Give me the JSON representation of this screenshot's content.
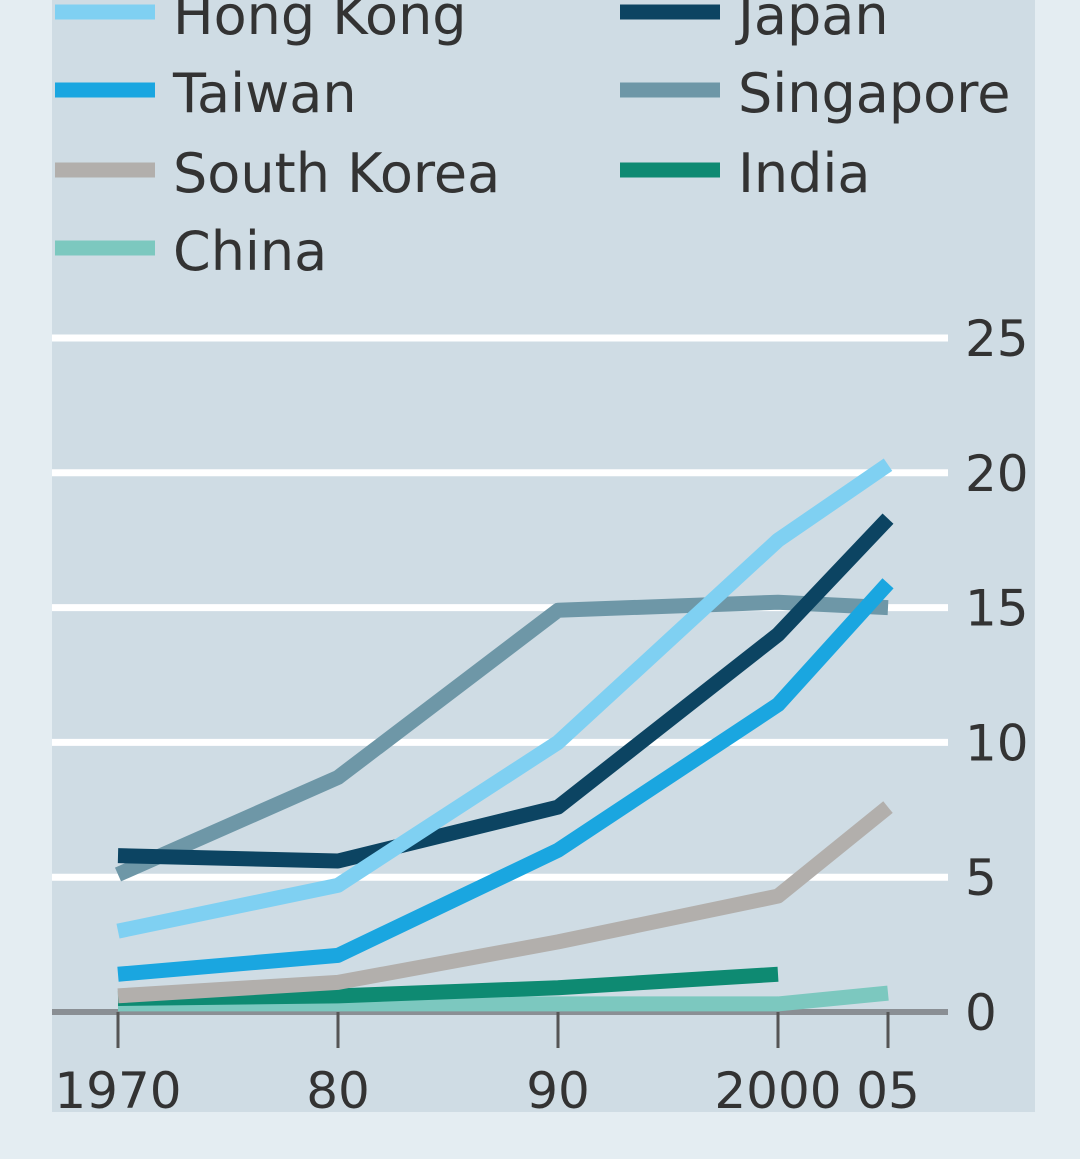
{
  "chart_data": {
    "type": "line",
    "title": "",
    "xlabel": "",
    "ylabel": "",
    "x": [
      1970,
      1980,
      1990,
      2000,
      2005
    ],
    "x_tick_labels": [
      "1970",
      "80",
      "90",
      "2000",
      "05"
    ],
    "y_ticks": [
      0,
      5,
      10,
      15,
      20,
      25
    ],
    "y_tick_labels": [
      "0",
      "5",
      "10",
      "15",
      "20",
      "25"
    ],
    "ylim": [
      0,
      25
    ],
    "grid": "horizontal",
    "legend_placement": "top",
    "series": [
      {
        "name": "Hong Kong",
        "color": "#7fd0f2",
        "values": [
          3.0,
          4.7,
          10.0,
          17.5,
          20.3
        ]
      },
      {
        "name": "Japan",
        "color": "#0c4462",
        "values": [
          5.8,
          5.6,
          7.6,
          14.0,
          18.3
        ]
      },
      {
        "name": "Taiwan",
        "color": "#1aa6e0",
        "values": [
          1.4,
          2.1,
          6.0,
          11.4,
          15.9
        ]
      },
      {
        "name": "Singapore",
        "color": "#6e97a7",
        "values": [
          5.1,
          8.7,
          14.9,
          15.2,
          15.0
        ]
      },
      {
        "name": "South Korea",
        "color": "#b2afac",
        "values": [
          0.6,
          1.1,
          2.6,
          4.3,
          7.6
        ]
      },
      {
        "name": "India",
        "color": "#0e8a72",
        "values": [
          0.5,
          0.6,
          0.9,
          1.4,
          null
        ]
      },
      {
        "name": "China",
        "color": "#7cc8bf",
        "values": [
          0.3,
          0.3,
          0.3,
          0.3,
          0.7
        ]
      }
    ]
  }
}
